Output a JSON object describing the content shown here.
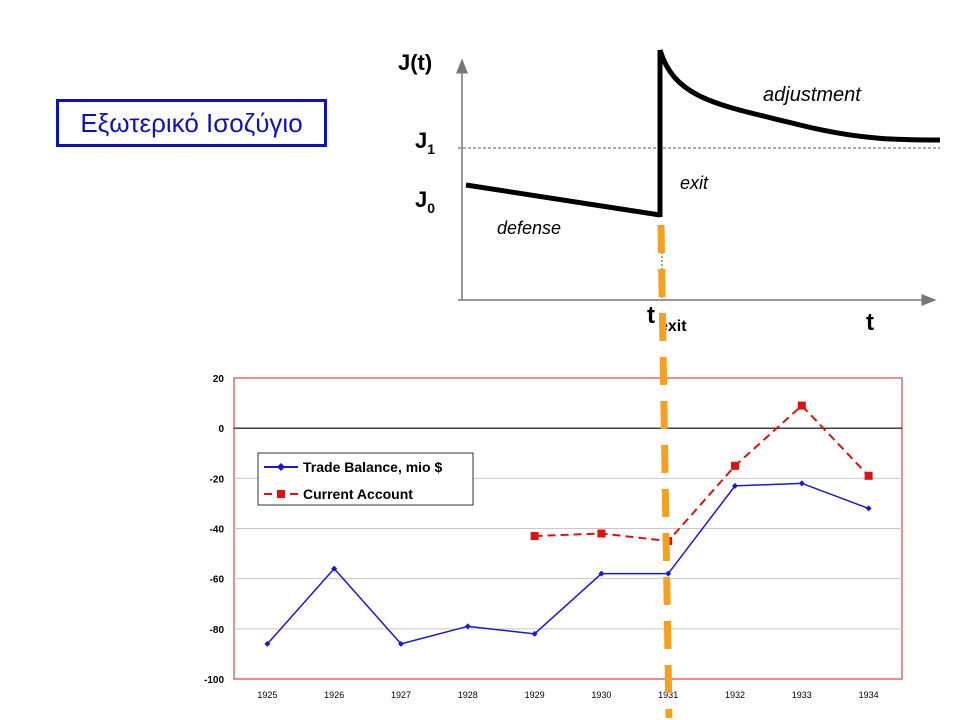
{
  "slide": {
    "title": "Εξωτερικό Ισοζύγιο",
    "title_color": "#1111bb"
  },
  "chart_data": [
    {
      "type": "line",
      "title": "",
      "xlabel": "t",
      "ylabel": "J(t)",
      "y_levels": [
        {
          "label": "J",
          "sub": "1"
        },
        {
          "label": "J",
          "sub": "0"
        }
      ],
      "x_marker": {
        "label": "t",
        "sub": "exit"
      },
      "annotations": [
        "adjustment",
        "exit",
        "defense"
      ],
      "segments": [
        "defense",
        "exit",
        "adjustment"
      ]
    },
    {
      "type": "line",
      "title": "",
      "categories": [
        "1925",
        "1926",
        "1927",
        "1928",
        "1929",
        "1930",
        "1931",
        "1932",
        "1933",
        "1934"
      ],
      "ylim": [
        -100,
        20
      ],
      "yticks": [
        20,
        0,
        -20,
        -40,
        -60,
        -80,
        -100
      ],
      "grid": true,
      "legend": "top-left",
      "series": [
        {
          "name": "Trade Balance, mio $",
          "color": "#1a1acc",
          "values": [
            -86,
            -56,
            -86,
            -79,
            -82,
            -58,
            -58,
            -23,
            -22,
            -32
          ]
        },
        {
          "name": "Current Account",
          "color": "#dd1111",
          "values": [
            null,
            null,
            null,
            null,
            -43,
            -42,
            -45,
            -15,
            9,
            -19
          ]
        }
      ]
    }
  ],
  "divider": {
    "color": "#f4a020"
  }
}
